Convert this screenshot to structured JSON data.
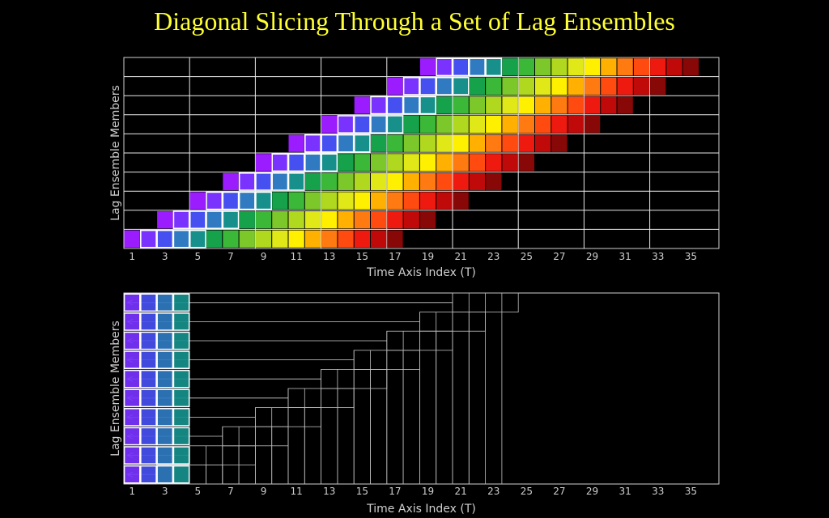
{
  "title": "Diagonal Slicing Through a Set of Lag Ensembles",
  "panels": [
    {
      "id": "top",
      "xlabel": "Time Axis Index (T)",
      "ylabel": "Lag Ensemble Members",
      "x_ticks": [
        "1",
        "3",
        "5",
        "7",
        "9",
        "11",
        "13",
        "15",
        "17",
        "19",
        "21",
        "23",
        "25",
        "27",
        "29",
        "31",
        "33",
        "35"
      ],
      "time_range": [
        1,
        36
      ],
      "members": 10,
      "cells_per_member": 17,
      "highlighted_cells_per_member": 4,
      "description": "member m occupies T = 2m-1 .. 2m+15"
    },
    {
      "id": "bottom",
      "xlabel": "Time Axis Index (T)",
      "ylabel": "Lag Ensemble Members",
      "x_ticks": [
        "1",
        "3",
        "5",
        "7",
        "9",
        "11",
        "13",
        "15",
        "17",
        "19",
        "21",
        "23",
        "25",
        "27",
        "29",
        "31",
        "33",
        "35"
      ],
      "time_range": [
        1,
        36
      ],
      "members": 10,
      "slice_length": 4
    }
  ],
  "colors": {
    "background": "#000000",
    "title": "#ffff33",
    "axis": "#cfcfcf",
    "highlight_border": "#ffffff",
    "palette": [
      "#9a1cff",
      "#7a33ff",
      "#4650f0",
      "#2f7ac0",
      "#17908c",
      "#16a24a",
      "#3cb838",
      "#7cc82a",
      "#b0d81e",
      "#e0e818",
      "#fff000",
      "#ffb000",
      "#ff7a10",
      "#ff4a10",
      "#ee1a10",
      "#c00a0a",
      "#880808"
    ]
  }
}
